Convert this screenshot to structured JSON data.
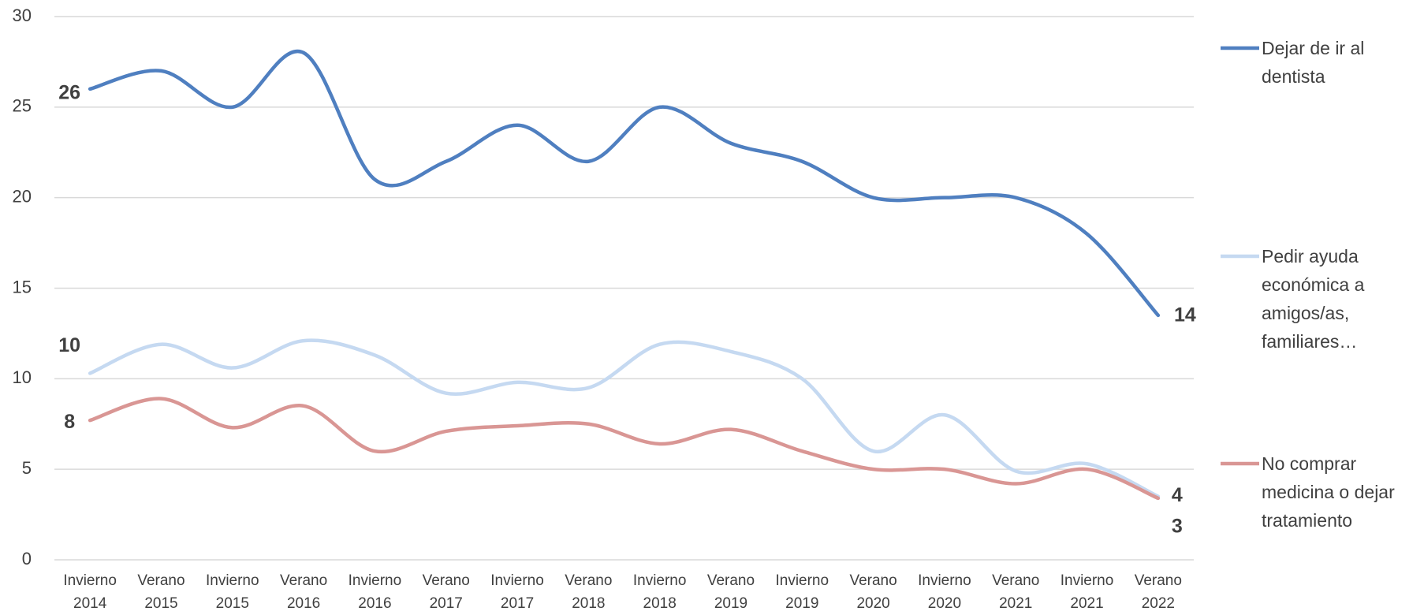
{
  "chart_data": {
    "type": "line",
    "categories": [
      "Invierno 2014",
      "Verano 2015",
      "Invierno 2015",
      "Verano 2016",
      "Invierno 2016",
      "Verano 2017",
      "Invierno 2017",
      "Verano 2018",
      "Invierno 2018",
      "Verano 2019",
      "Invierno 2019",
      "Verano 2020",
      "Invierno 2020",
      "Verano 2021",
      "Invierno 2021",
      "Verano 2022"
    ],
    "series": [
      {
        "name": "Dejar de ir al dentista",
        "color": "#4f7fc0",
        "values": [
          26,
          27,
          25,
          28,
          21,
          22,
          24,
          22,
          25,
          23,
          22,
          20,
          20,
          20,
          18,
          13.5
        ],
        "value_labels": [
          "26",
          null,
          null,
          null,
          null,
          null,
          null,
          null,
          null,
          null,
          null,
          null,
          null,
          null,
          null,
          "14"
        ]
      },
      {
        "name": "Pedir ayuda económica a amigos/as, familiares…",
        "color": "#c5d9f1",
        "values": [
          10.3,
          11.9,
          10.6,
          12.1,
          11.3,
          9.2,
          9.8,
          9.5,
          11.9,
          11.5,
          10,
          6,
          8,
          4.9,
          5.3,
          3.5
        ],
        "value_labels": [
          "10",
          null,
          null,
          null,
          null,
          null,
          null,
          null,
          null,
          null,
          null,
          null,
          null,
          null,
          null,
          "4"
        ]
      },
      {
        "name": "No comprar medicina o dejar tratamiento",
        "color": "#d99694",
        "values": [
          7.7,
          8.9,
          7.3,
          8.5,
          6,
          7.1,
          7.4,
          7.5,
          6.4,
          7.2,
          6,
          5,
          5,
          4.2,
          5,
          3.4
        ],
        "value_labels": [
          "8",
          null,
          null,
          null,
          null,
          null,
          null,
          null,
          null,
          null,
          null,
          null,
          null,
          null,
          null,
          "3"
        ]
      }
    ],
    "ylim": [
      0,
      30
    ],
    "yticks": [
      0,
      5,
      10,
      15,
      20,
      25,
      30
    ],
    "grid": true,
    "smooth": true,
    "legend": "right"
  }
}
